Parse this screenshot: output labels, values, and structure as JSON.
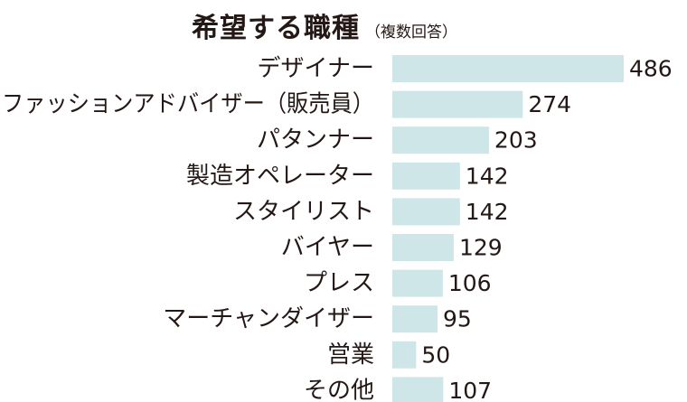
{
  "chart_data": {
    "type": "bar",
    "orientation": "horizontal",
    "title": "希望する職種",
    "subtitle": "（複数回答）",
    "categories": [
      "デザイナー",
      "ファッションアドバイザー（販売員）",
      "パタンナー",
      "製造オペレーター",
      "スタイリスト",
      "バイヤー",
      "プレス",
      "マーチャンダイザー",
      "営業",
      "その他"
    ],
    "values": [
      486,
      274,
      203,
      142,
      142,
      129,
      106,
      95,
      50,
      107
    ],
    "xlim": [
      0,
      486
    ],
    "grid": false,
    "legend": false,
    "bar_color": "#cfe6e8"
  }
}
